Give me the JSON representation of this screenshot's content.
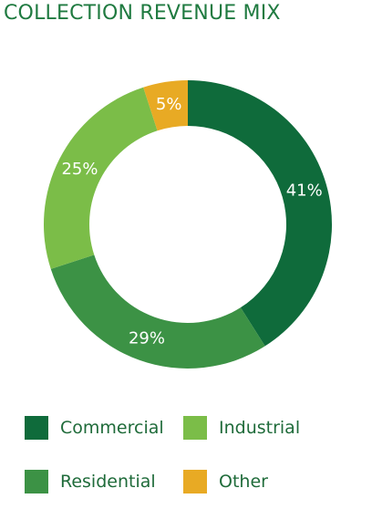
{
  "title": "COLLECTION REVENUE MIX",
  "chart_data": {
    "type": "pie",
    "variant": "donut",
    "title": "COLLECTION REVENUE MIX",
    "categories": [
      "Commercial",
      "Residential",
      "Industrial",
      "Other"
    ],
    "values": [
      41,
      29,
      25,
      5
    ],
    "labels": [
      "41%",
      "29%",
      "25%",
      "5%"
    ],
    "colors": [
      "#0f6b3b",
      "#3c9245",
      "#7bbd48",
      "#e8aa24"
    ],
    "legend_position": "bottom",
    "legend": [
      {
        "label": "Commercial",
        "color": "#0f6b3b"
      },
      {
        "label": "Industrial",
        "color": "#7bbd48"
      },
      {
        "label": "Residential",
        "color": "#3c9245"
      },
      {
        "label": "Other",
        "color": "#e8aa24"
      }
    ]
  }
}
